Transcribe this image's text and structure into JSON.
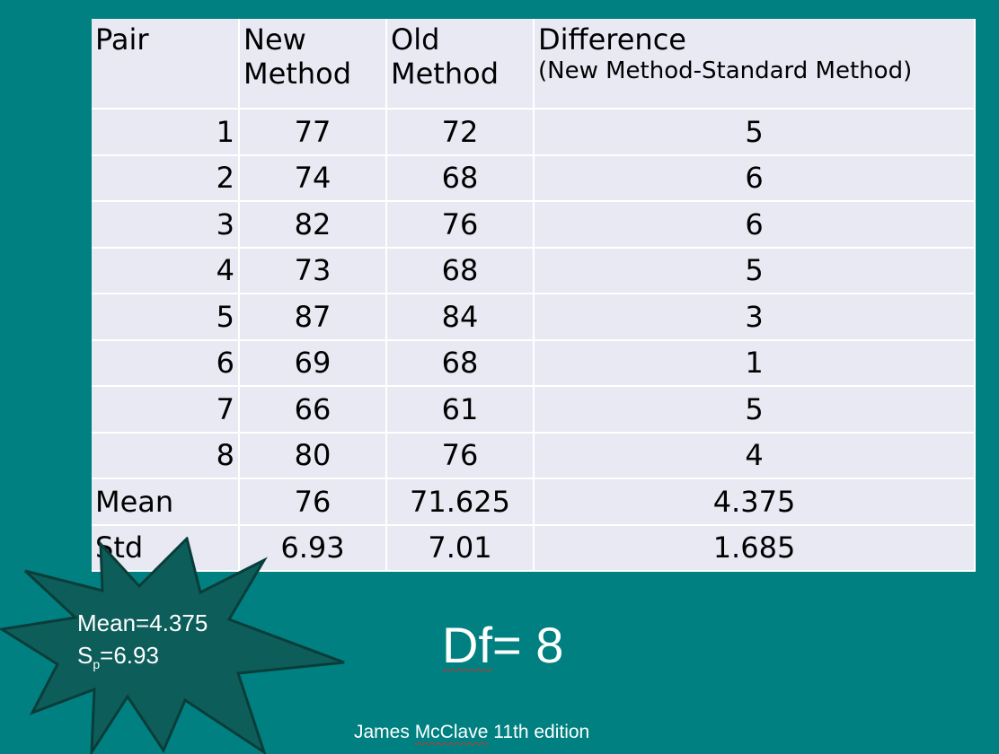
{
  "table": {
    "headers": {
      "pair": "Pair",
      "new_line1": "New",
      "new_line2": "Method",
      "old_line1": "Old",
      "old_line2": "Method",
      "diff_line1": "Difference",
      "diff_line2": "(New Method-Standard Method)"
    },
    "rows": [
      {
        "pair": "1",
        "new": "77",
        "old": "72",
        "diff": "5"
      },
      {
        "pair": "2",
        "new": "74",
        "old": "68",
        "diff": "6"
      },
      {
        "pair": "3",
        "new": "82",
        "old": "76",
        "diff": "6"
      },
      {
        "pair": "4",
        "new": "73",
        "old": "68",
        "diff": "5"
      },
      {
        "pair": "5",
        "new": "87",
        "old": "84",
        "diff": "3"
      },
      {
        "pair": "6",
        "new": "69",
        "old": "68",
        "diff": "1"
      },
      {
        "pair": "7",
        "new": "66",
        "old": "61",
        "diff": "5"
      },
      {
        "pair": "8",
        "new": "80",
        "old": "76",
        "diff": "4"
      }
    ],
    "mean": {
      "label": "Mean",
      "new": "76",
      "old": "71.625",
      "diff": "4.375"
    },
    "std": {
      "label": "Std",
      "new": "6.93",
      "old": "7.01",
      "diff": "1.685"
    }
  },
  "callout": {
    "mean_text": "Mean=4.375",
    "sp_prefix": "S",
    "sp_sub": "p",
    "sp_value": "=6.93"
  },
  "df": {
    "label": "Df",
    "eq": "= ",
    "value": "8"
  },
  "credit": {
    "pre": "James ",
    "name": "McClave",
    "post": " 11th edition"
  },
  "colors": {
    "background": "#008080",
    "table_cell": "#e8e9f3",
    "star_fill": "#0d5e5a",
    "star_stroke": "#0a3d3a"
  }
}
